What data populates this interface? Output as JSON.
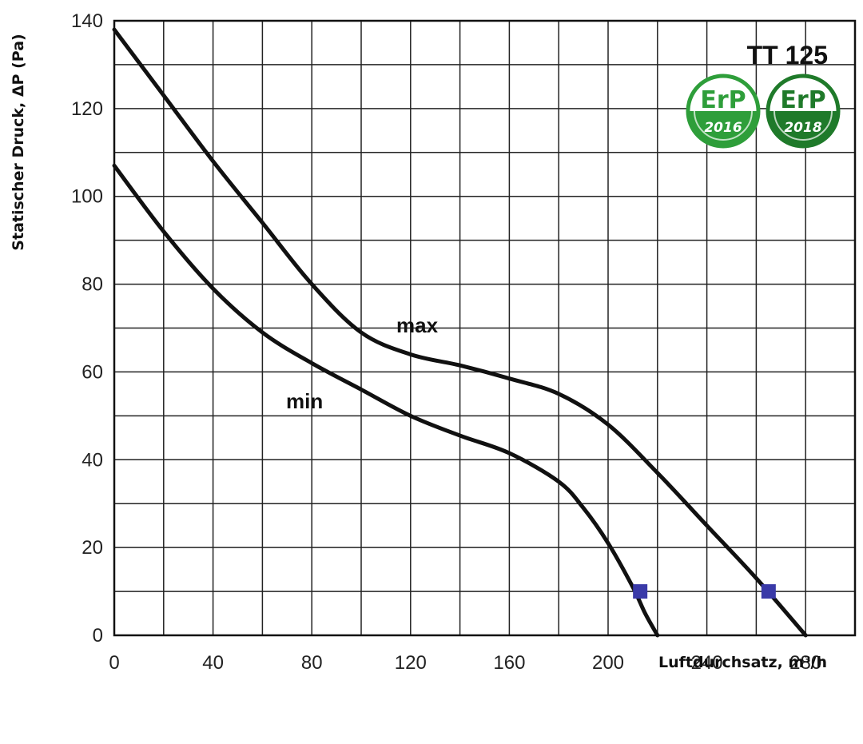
{
  "chart_data": {
    "type": "line",
    "title": "TT 125",
    "xlabel": "Luftdurchsatz, m³/h",
    "ylabel": "Statischer Druck, ΔP (Pa)",
    "xlim": [
      0,
      300
    ],
    "ylim": [
      0,
      140
    ],
    "x_ticks": [
      0,
      40,
      80,
      120,
      160,
      200,
      240,
      280
    ],
    "y_ticks": [
      0,
      20,
      40,
      60,
      80,
      100,
      120,
      140
    ],
    "grid": true,
    "series": [
      {
        "name": "max",
        "x": [
          0,
          20,
          40,
          60,
          80,
          100,
          120,
          140,
          160,
          180,
          200,
          220,
          240,
          260,
          280
        ],
        "y": [
          138,
          123,
          108,
          94,
          80,
          69,
          64,
          61.5,
          58.5,
          55,
          48,
          37,
          25,
          13,
          0
        ]
      },
      {
        "name": "min",
        "x": [
          0,
          20,
          40,
          60,
          80,
          100,
          120,
          140,
          160,
          180,
          190,
          200,
          210,
          215,
          220
        ],
        "y": [
          107,
          92,
          79,
          69,
          62,
          56,
          50,
          45.5,
          41.5,
          35,
          29,
          21,
          11,
          5,
          0
        ]
      }
    ],
    "markers": [
      {
        "series": "min",
        "x": 213,
        "y": 10
      },
      {
        "series": "max",
        "x": 265,
        "y": 10
      }
    ],
    "badges": [
      {
        "text": "ErP",
        "year": "2016"
      },
      {
        "text": "ErP",
        "year": "2018"
      }
    ],
    "colors": {
      "line": "#111111",
      "grid": "#222222",
      "marker": "#3a3aa8",
      "badge_green": "#2e9e3a",
      "badge_green_dark": "#1f7a2a"
    }
  }
}
